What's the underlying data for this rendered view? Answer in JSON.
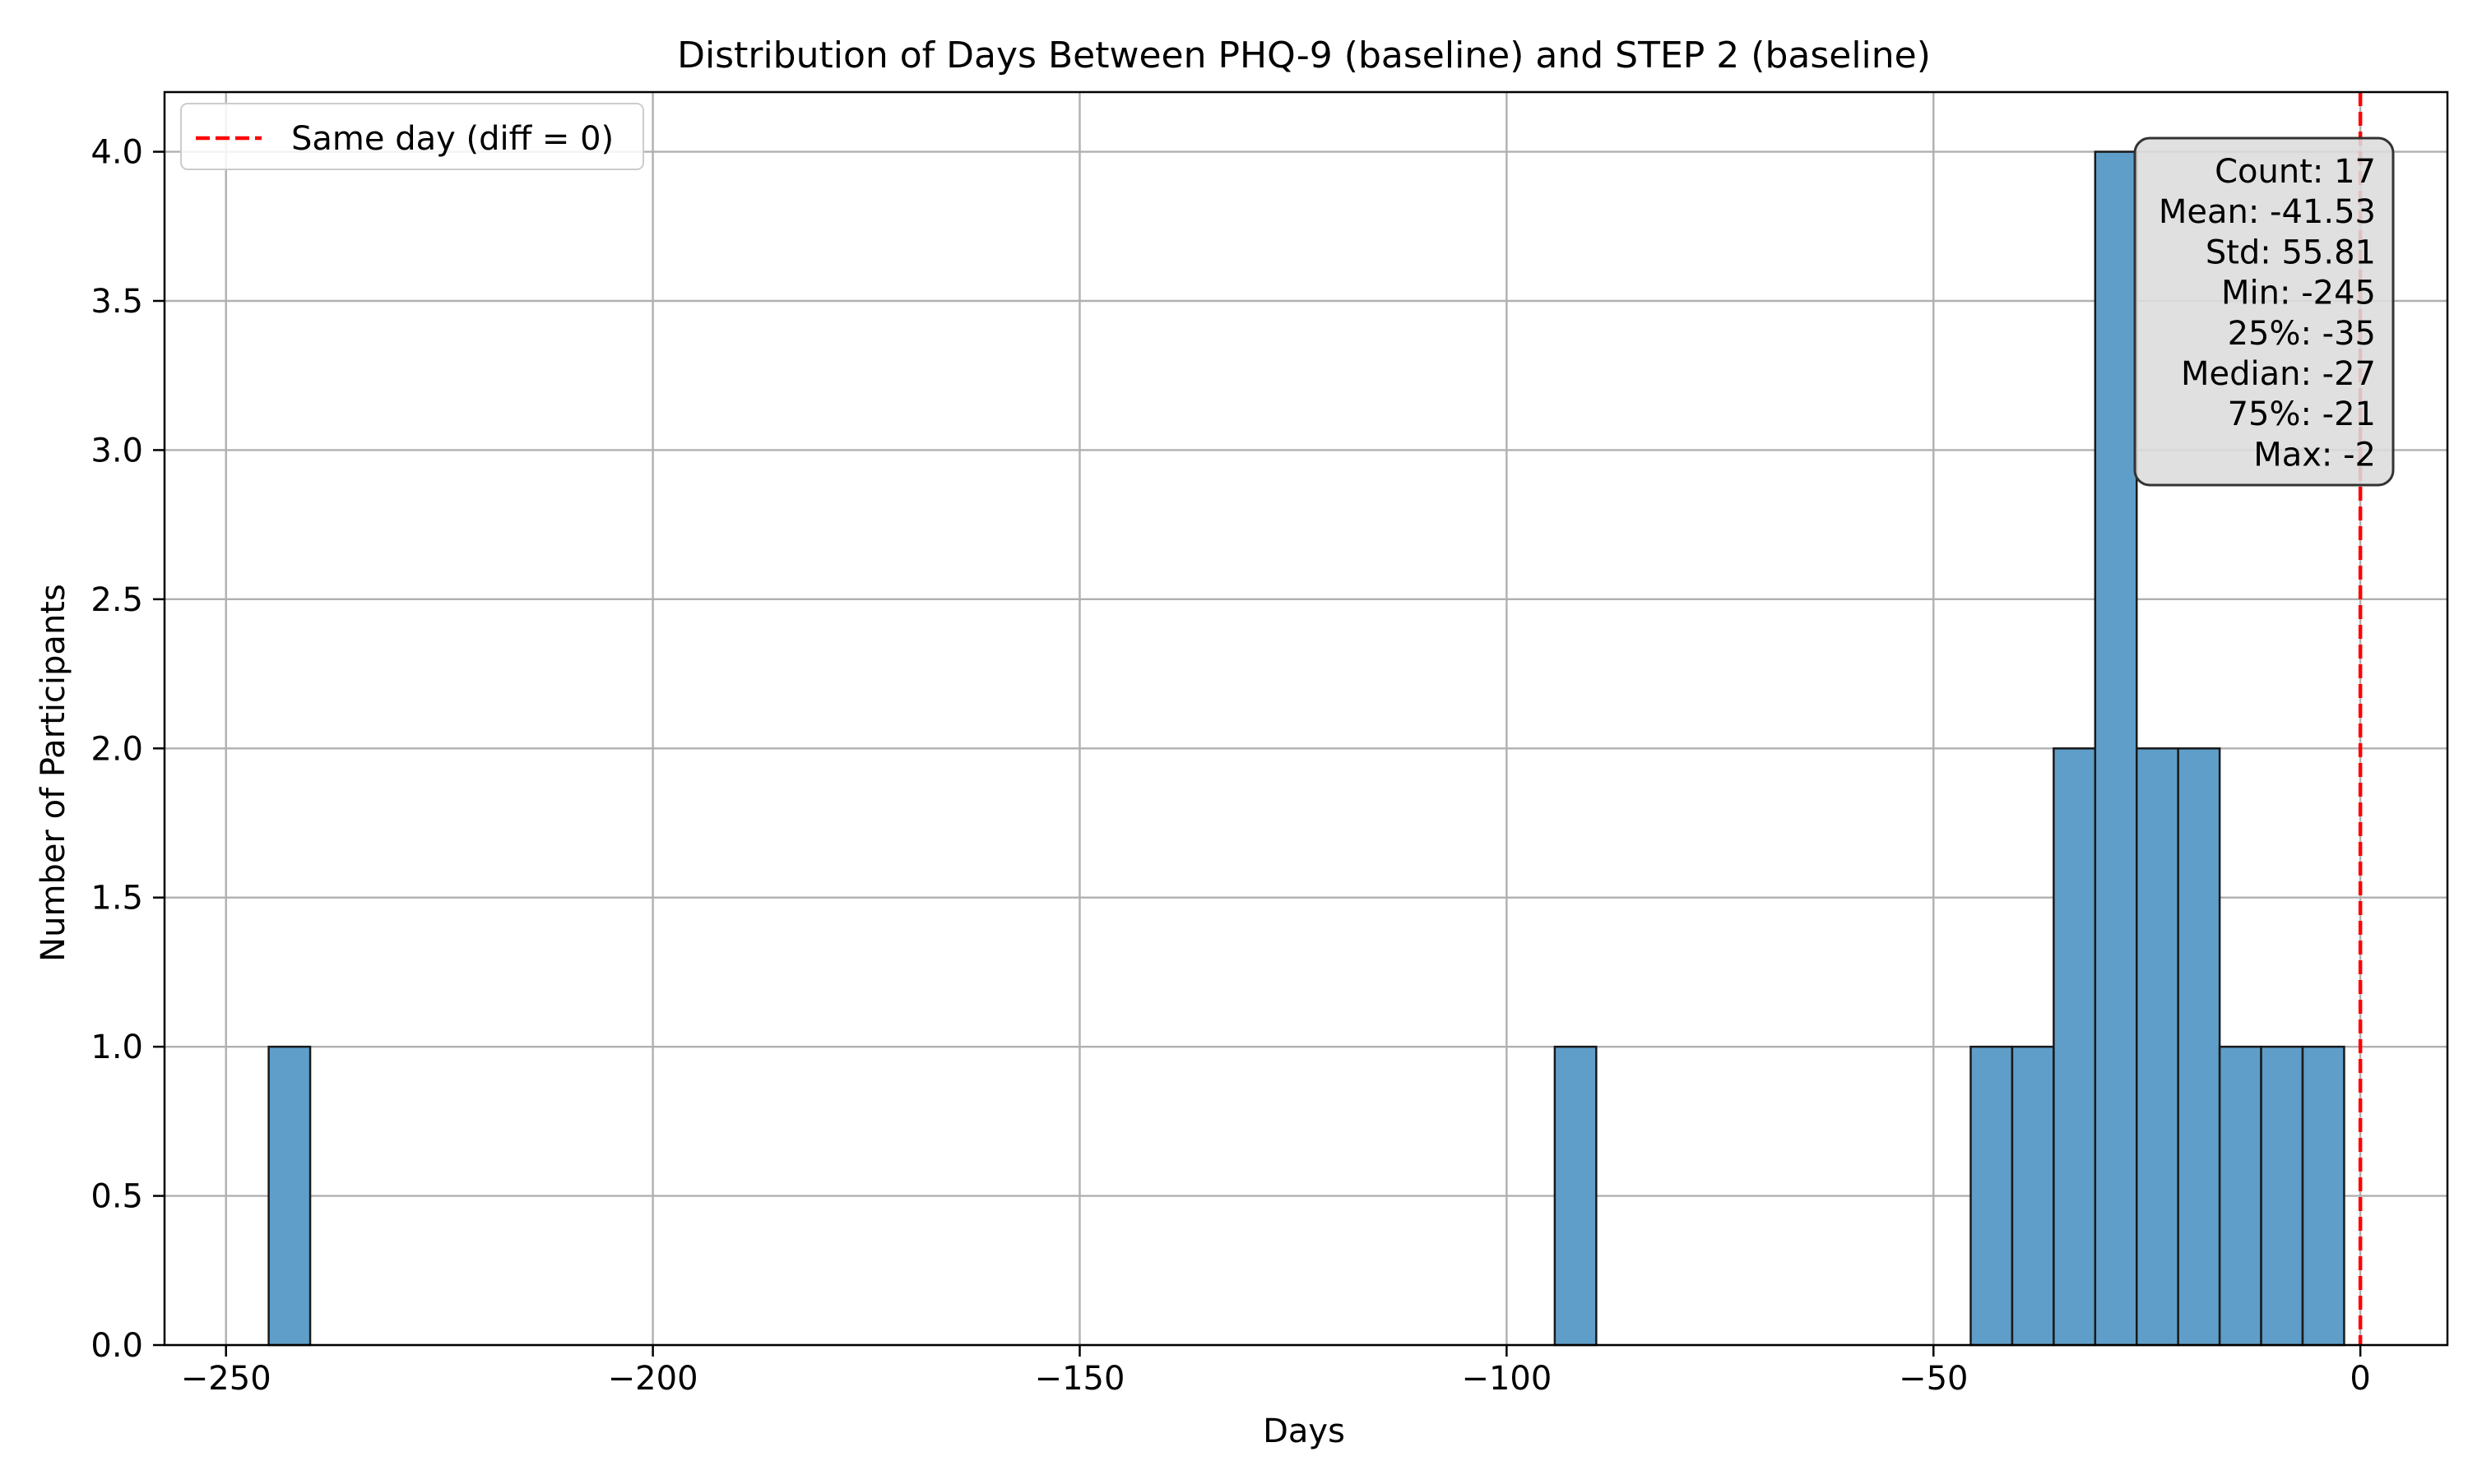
{
  "chart_data": {
    "type": "bar",
    "title": "Distribution of Days Between PHQ-9 (baseline) and STEP 2 (baseline)",
    "xlabel": "Days",
    "ylabel": "Number of Participants",
    "xlim": [
      -257.2,
      10.2
    ],
    "ylim": [
      0,
      4.2
    ],
    "xticks": [
      -250,
      -200,
      -150,
      -100,
      -50,
      0
    ],
    "xtick_labels": [
      "−250",
      "−200",
      "−150",
      "−100",
      "−50",
      "0"
    ],
    "yticks": [
      0.0,
      0.5,
      1.0,
      1.5,
      2.0,
      2.5,
      3.0,
      3.5,
      4.0
    ],
    "ytick_labels": [
      "0.0",
      "0.5",
      "1.0",
      "1.5",
      "2.0",
      "2.5",
      "3.0",
      "3.5",
      "4.0"
    ],
    "grid": true,
    "bins": [
      {
        "x0": -245.0,
        "x1": -240.14,
        "count": 1
      },
      {
        "x0": -94.36,
        "x1": -89.5,
        "count": 1
      },
      {
        "x0": -45.64,
        "x1": -40.78,
        "count": 1
      },
      {
        "x0": -40.78,
        "x1": -35.92,
        "count": 1
      },
      {
        "x0": -35.92,
        "x1": -31.06,
        "count": 2
      },
      {
        "x0": -31.06,
        "x1": -26.2,
        "count": 4
      },
      {
        "x0": -26.2,
        "x1": -21.34,
        "count": 2
      },
      {
        "x0": -21.34,
        "x1": -16.48,
        "count": 2
      },
      {
        "x0": -16.48,
        "x1": -11.62,
        "count": 1
      },
      {
        "x0": -11.62,
        "x1": -6.76,
        "count": 1
      },
      {
        "x0": -6.76,
        "x1": -1.9,
        "count": 1
      }
    ],
    "bar_color": "#5f9ec9",
    "bar_edge_color": "#1a1a1a",
    "reference_line": {
      "x": 0,
      "color": "#ff0000",
      "style": "dashed",
      "label": "Same day (diff = 0)"
    },
    "legend": {
      "position": "top-left",
      "entries": [
        "Same day (diff = 0)"
      ]
    },
    "stats_box": {
      "position": "top-right",
      "lines": [
        "Count: 17",
        "Mean: -41.53",
        "Std: 55.81",
        "Min: -245",
        "25%: -35",
        "Median: -27",
        "75%: -21",
        "Max: -2"
      ]
    }
  }
}
